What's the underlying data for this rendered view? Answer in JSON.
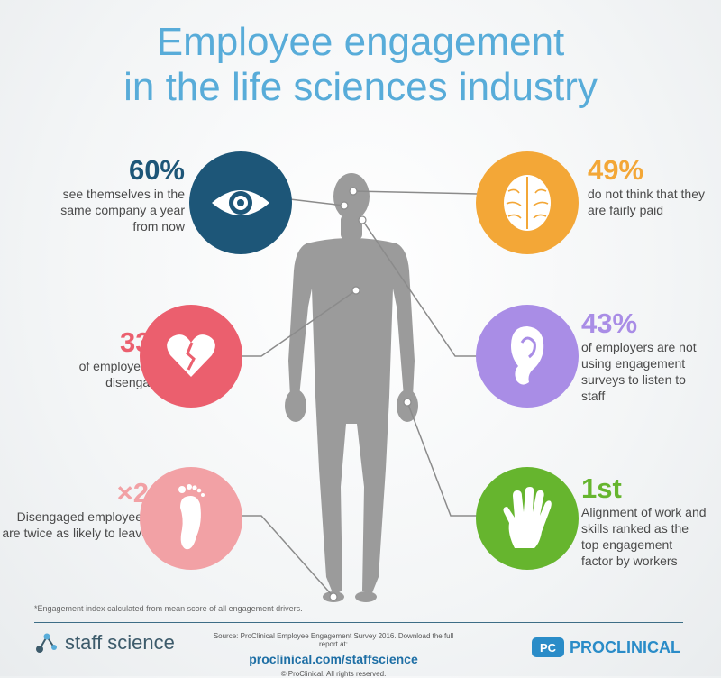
{
  "title": {
    "line1": "Employee engagement",
    "line2": "in the life sciences industry"
  },
  "colors": {
    "title": "#58acd9",
    "eye": "#1d5678",
    "brain": "#f3a737",
    "heart": "#eb5f6e",
    "ear": "#a98de6",
    "foot": "#f2a1a5",
    "hand": "#66b52e",
    "body": "#9b9b9b"
  },
  "stats": {
    "eye": {
      "value": "60%",
      "text": "see themselves in the same company a year from now",
      "icon": "eye-icon"
    },
    "heart": {
      "value": "33%",
      "text": "of employees are disengaged*",
      "icon": "broken-heart-icon"
    },
    "foot": {
      "value": "×2",
      "text": "Disengaged employees are twice as likely to leave",
      "icon": "foot-icon"
    },
    "brain": {
      "value": "49%",
      "text": "do not think that they are fairly paid",
      "icon": "brain-icon"
    },
    "ear": {
      "value": "43%",
      "text": "of employers are not using engagement surveys to listen to staff",
      "icon": "ear-icon"
    },
    "hand": {
      "value": "1st",
      "text": "Alignment of work and skills ranked as the top engagement factor by workers",
      "icon": "hand-icon"
    }
  },
  "footnote": "*Engagement index calculated from mean score of all engagement drivers.",
  "footer": {
    "staff_science": "staff science",
    "source": "Source: ProClinical Employee Engagement Survey 2016. Download the full report at:",
    "url": "proclinical.com/staffscience",
    "copyright": "© ProClinical. All rights reserved.",
    "pc_badge": "PC",
    "proclinical": "PROCLINICAL"
  }
}
